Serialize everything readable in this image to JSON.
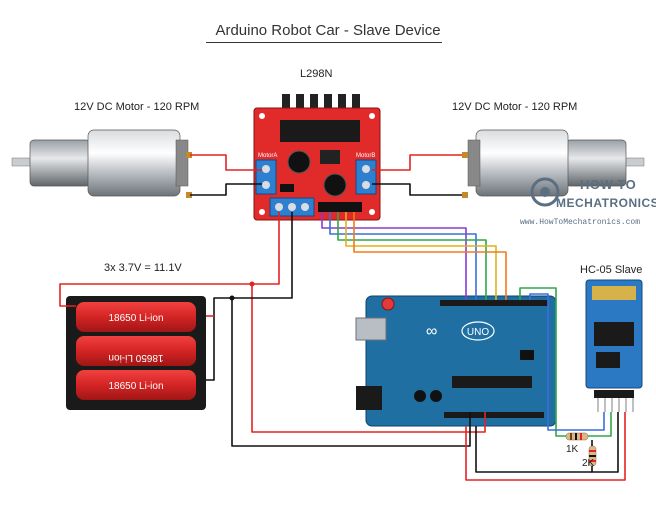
{
  "title": "Arduino Robot Car - Slave Device",
  "driver": {
    "label": "L298N",
    "left_terminal_label": "MotorA",
    "right_terminal_label": "MotorB"
  },
  "motors": {
    "left_label": "12V DC Motor - 120 RPM",
    "right_label": "12V DC Motor - 120 RPM"
  },
  "battery": {
    "label": "3x 3.7V = 11.1V",
    "cells": [
      "18650 Li-ion",
      "18650 Li-ion",
      "18650 Li-ion"
    ]
  },
  "arduino": {
    "logo_text": "UNO"
  },
  "bluetooth": {
    "label": "HC-05 Slave"
  },
  "resistors": {
    "r1": "1K",
    "r2": "2K"
  },
  "brand": {
    "top": "HOW TO",
    "bottom": "MECHATRONICS",
    "url": "www.HowToMechatronics.com"
  },
  "colors": {
    "driver_board": "#e12a2a",
    "arduino_board": "#1f6fa3",
    "bluetooth_board": "#2a79c2",
    "battery_cell": "#d42424",
    "wire_red": "#e52222",
    "wire_black": "#111111"
  }
}
